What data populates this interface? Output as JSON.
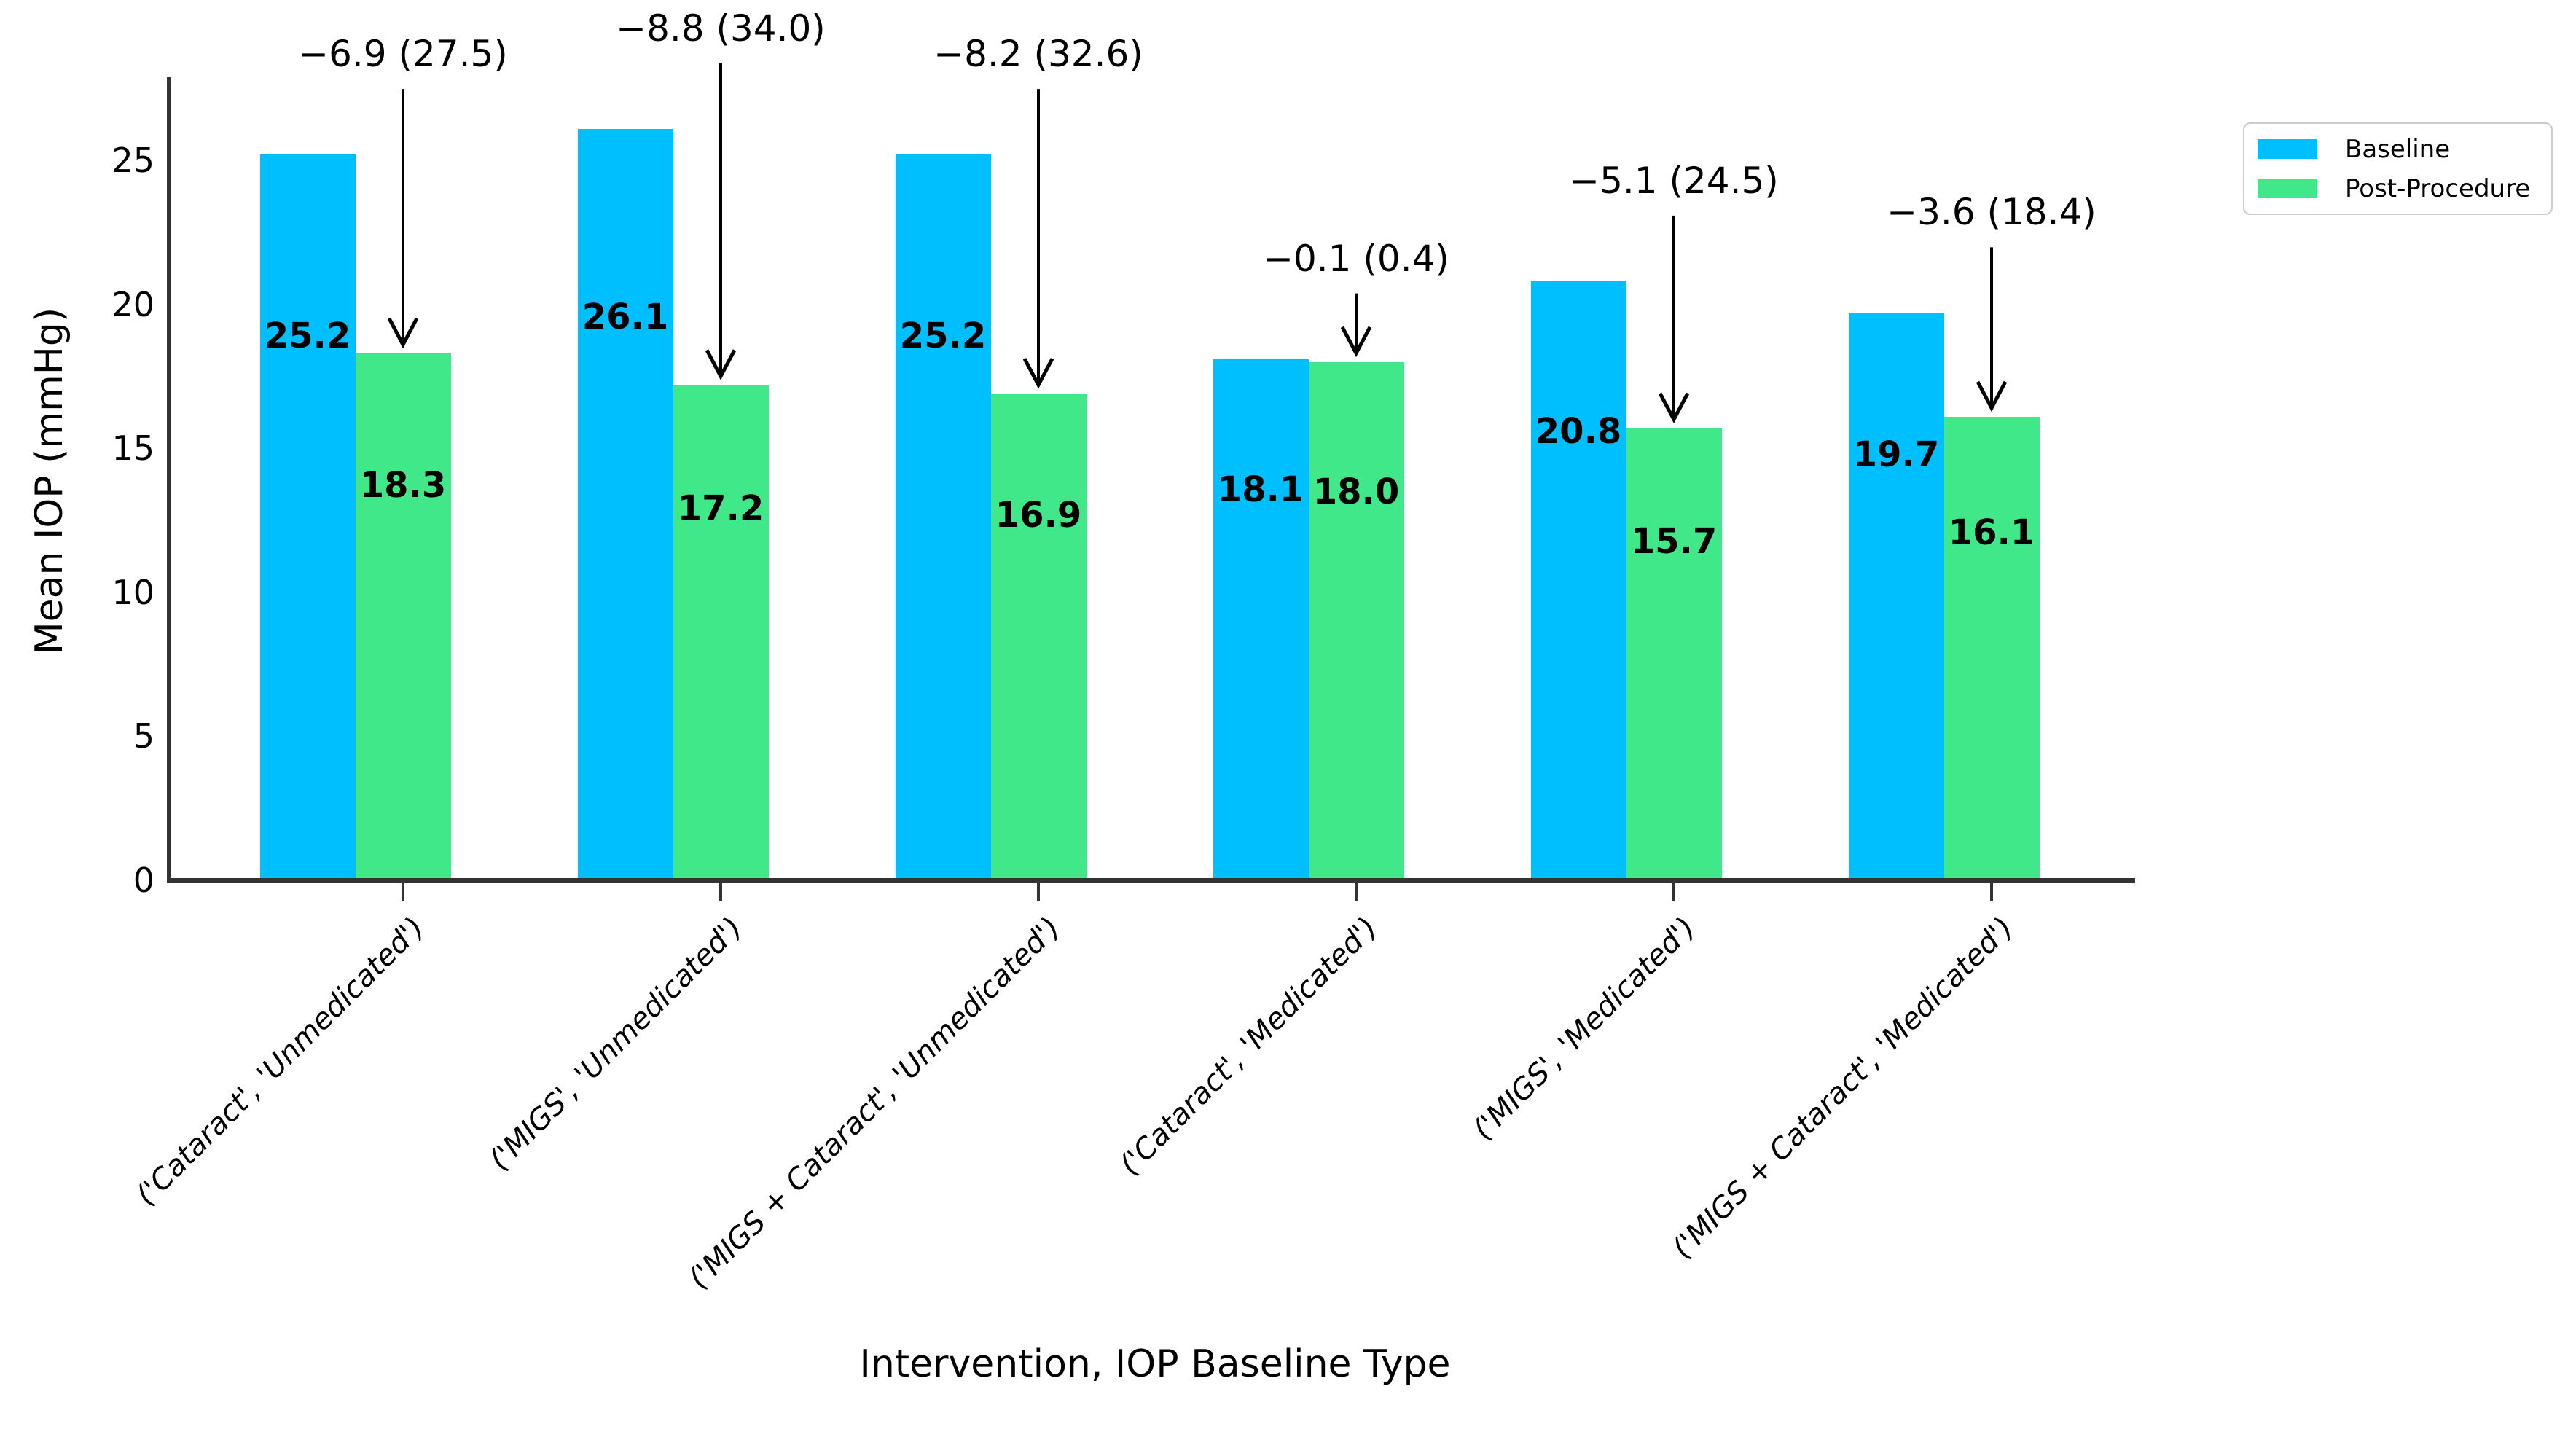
{
  "chart_data": {
    "type": "bar",
    "title": "",
    "xlabel": "Intervention, IOP Baseline Type",
    "ylabel": "Mean IOP (mmHg)",
    "categories": [
      "('Cataract', 'Unmedicated')",
      "('MIGS', 'Unmedicated')",
      "('MIGS + Cataract', 'Unmedicated')",
      "('Cataract', 'Medicated')",
      "('MIGS', 'Medicated')",
      "('MIGS + Cataract', 'Medicated')"
    ],
    "series": [
      {
        "name": "Baseline",
        "color": "#00bfff",
        "values": [
          25.2,
          26.1,
          25.2,
          18.1,
          20.8,
          19.7
        ],
        "value_labels": [
          "25.2",
          "26.1",
          "25.2",
          "18.1",
          "20.8",
          "19.7"
        ]
      },
      {
        "name": "Post-Procedure",
        "color": "#40e88a",
        "values": [
          18.3,
          17.2,
          16.9,
          18.0,
          15.7,
          16.1
        ],
        "value_labels": [
          "18.3",
          "17.2",
          "16.9",
          "18.0",
          "15.7",
          "16.1"
        ]
      }
    ],
    "annotations": [
      "−6.9 (27.5)",
      "−8.8 (34.0)",
      "−8.2 (32.6)",
      "−0.1 (0.4)",
      "−5.1 (24.5)",
      "−3.6 (18.4)"
    ],
    "yticks": [
      "0",
      "5",
      "10",
      "15",
      "20",
      "25"
    ],
    "ylim": [
      0,
      27.9
    ],
    "grid": false,
    "legend_position": "outside-upper-right",
    "axis_color": "#333333",
    "text_color": "#000000"
  }
}
